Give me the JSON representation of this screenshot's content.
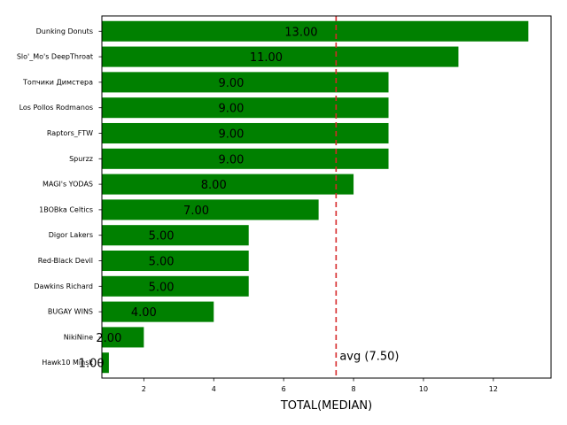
{
  "chart_data": {
    "type": "bar",
    "orientation": "horizontal",
    "categories": [
      "Dunking Donuts",
      "Slo'_Mo's DeepThroat",
      "Топчики Димстера",
      "Los Pollos Rodmanos",
      "Raptors_FTW",
      "Spurzz",
      "MAGI's YODAS",
      "1BOBka Celtics",
      "Digor Lakers",
      "Red-Black Devil",
      "Dawkins Richard",
      "BUGAY WINS",
      "NikiNine",
      "Hawk10 Minsk"
    ],
    "values": [
      13,
      11,
      9,
      9,
      9,
      9,
      8,
      7,
      5,
      5,
      5,
      4,
      2,
      1
    ],
    "value_labels": [
      "13.00",
      "11.00",
      "9.00",
      "9.00",
      "9.00",
      "9.00",
      "8.00",
      "7.00",
      "5.00",
      "5.00",
      "5.00",
      "4.00",
      "2.00",
      "1.00"
    ],
    "xlabel": "TOTAL(MEDIAN)",
    "ylabel": "",
    "xlim": [
      0.8,
      13.65
    ],
    "xticks": [
      2,
      4,
      6,
      8,
      10,
      12
    ],
    "xtick_labels": [
      "2",
      "4",
      "6",
      "8",
      "10",
      "12"
    ],
    "bar_color": "#008000",
    "reference_line": {
      "value": 7.5,
      "label": "avg (7.50)",
      "color": "#d62728",
      "style": "dashed"
    },
    "grid": false
  }
}
